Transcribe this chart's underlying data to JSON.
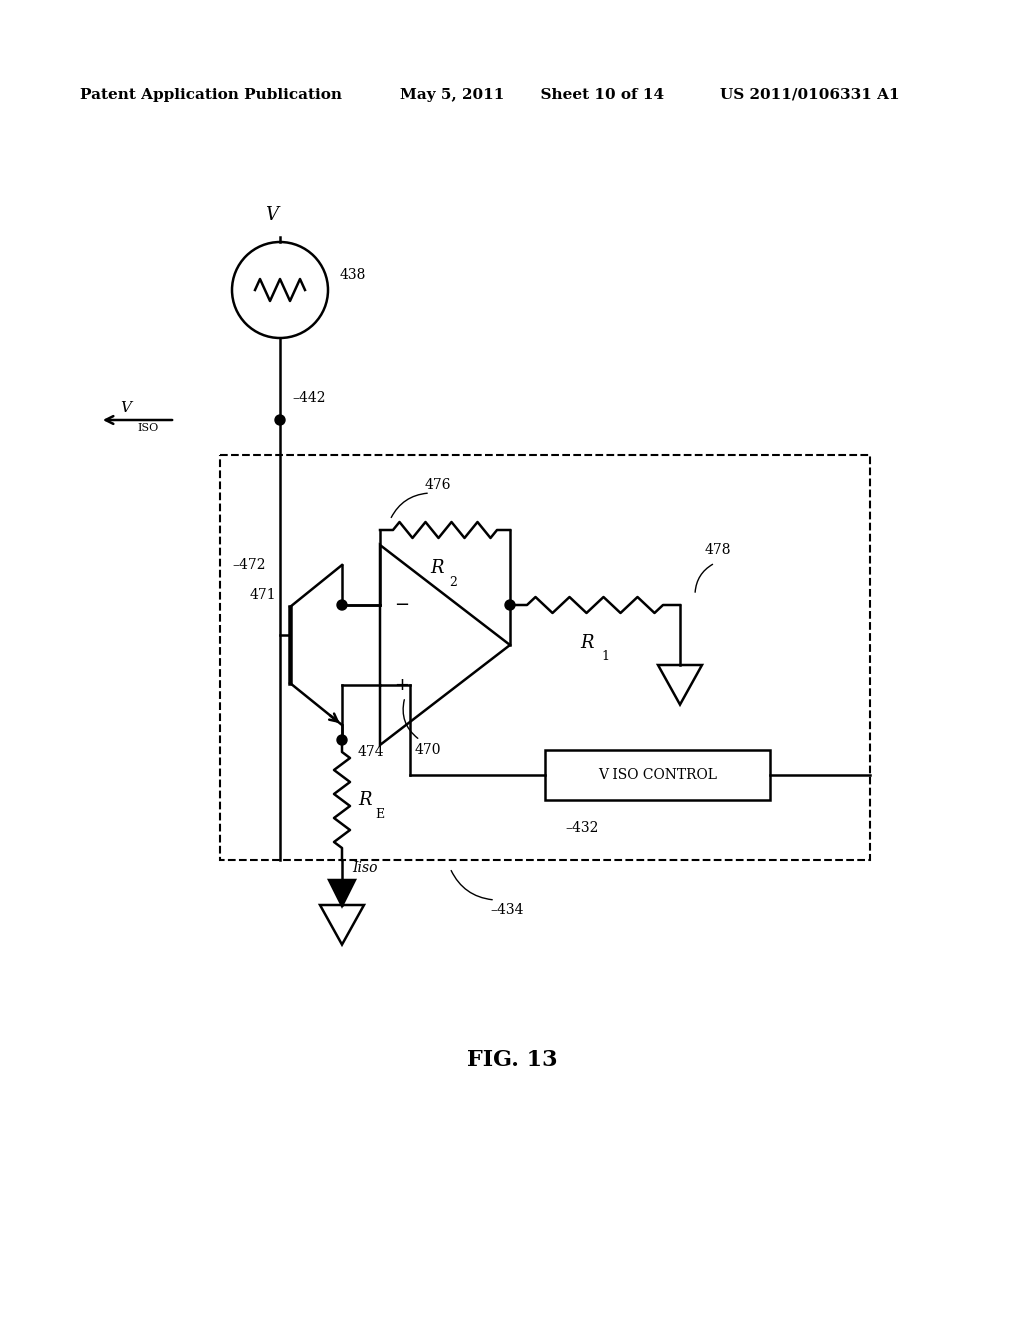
{
  "bg_color": "#ffffff",
  "header_text": "Patent Application Publication",
  "header_date": "May 5, 2011",
  "header_sheet": "Sheet 10 of 14",
  "header_patent": "US 2011/0106331 A1",
  "fig_label": "FIG. 13",
  "label_438": "438",
  "label_442": "–442",
  "label_476": "476",
  "label_478": "478",
  "label_472": "–472",
  "label_471": "471",
  "label_470": "470",
  "label_474": "474",
  "label_434": "–434",
  "label_432": "–432",
  "label_liso": "Iiso",
  "text_viso_control": "V ISO CONTROL"
}
